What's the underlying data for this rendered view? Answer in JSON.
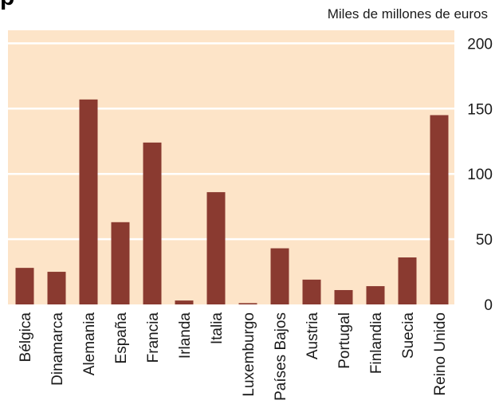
{
  "title_fragment": "p",
  "chart_data": {
    "type": "bar",
    "title": "",
    "unit_label": "Miles de millones de euros",
    "categories": [
      "Bélgica",
      "Dinamarca",
      "Alemania",
      "España",
      "Francia",
      "Irlanda",
      "Italia",
      "Luxemburgo",
      "Países Bajos",
      "Austria",
      "Portugal",
      "Finlandia",
      "Suecia",
      "Reino Unido"
    ],
    "values": [
      28,
      25,
      157,
      63,
      124,
      3,
      86,
      1,
      43,
      19,
      11,
      14,
      36,
      145
    ],
    "ylim": [
      0,
      210
    ],
    "yticks": [
      0,
      50,
      100,
      150,
      200
    ],
    "ytick_labels": [
      "0",
      "50",
      "100",
      "150",
      "200"
    ],
    "y_axis_side": "right",
    "grid": true,
    "legend": "none"
  },
  "colors": {
    "background": "#fde4c8",
    "bar": "#8a3a30",
    "grid": "#ffffff",
    "text": "#1a1a1a"
  }
}
